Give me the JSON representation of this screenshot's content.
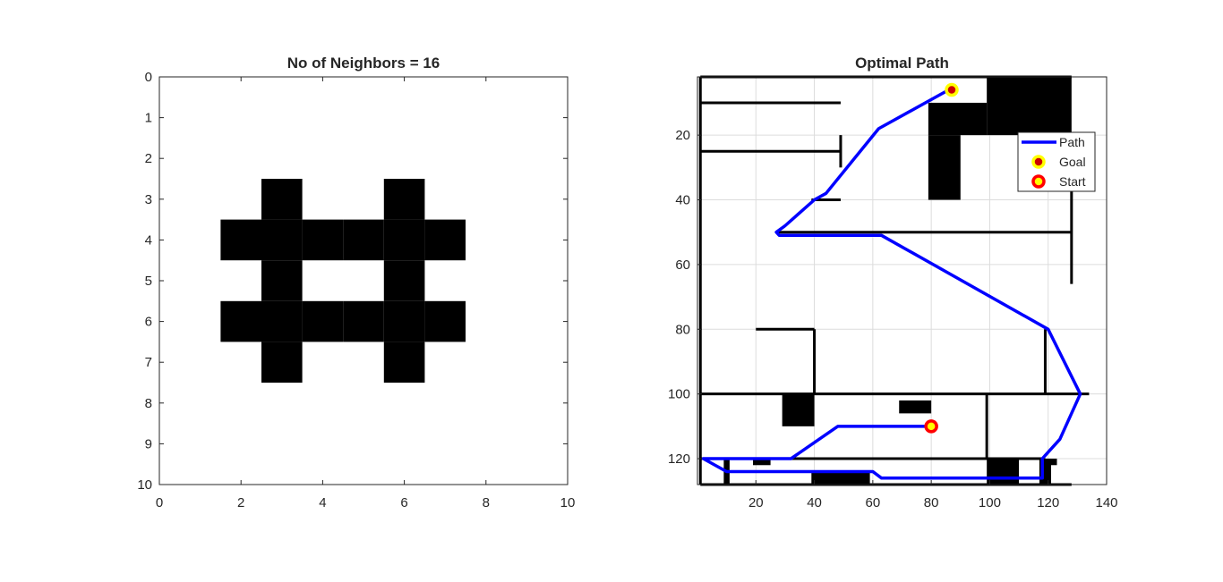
{
  "chart_data": [
    {
      "type": "heatmap",
      "title": "No of Neighbors = 16",
      "xlim": [
        0,
        10
      ],
      "ylim": [
        0,
        10
      ],
      "y_reversed": true,
      "grid": false,
      "xticks": [
        "0",
        "2",
        "4",
        "6",
        "8",
        "10"
      ],
      "yticks": [
        "0",
        "1",
        "2",
        "3",
        "4",
        "5",
        "6",
        "7",
        "8",
        "9",
        "10"
      ],
      "colors": {
        "occupied": "#000000",
        "free": "#ffffff"
      },
      "occupied_cells": [
        [
          3,
          3
        ],
        [
          6,
          3
        ],
        [
          2,
          4
        ],
        [
          3,
          4
        ],
        [
          4,
          4
        ],
        [
          5,
          4
        ],
        [
          6,
          4
        ],
        [
          7,
          4
        ],
        [
          3,
          5
        ],
        [
          6,
          5
        ],
        [
          2,
          6
        ],
        [
          3,
          6
        ],
        [
          4,
          6
        ],
        [
          5,
          6
        ],
        [
          6,
          6
        ],
        [
          7,
          6
        ],
        [
          3,
          7
        ],
        [
          6,
          7
        ]
      ]
    },
    {
      "type": "line",
      "title": "Optimal Path",
      "xlim": [
        0,
        140
      ],
      "ylim": [
        128,
        2
      ],
      "y_reversed": true,
      "grid": true,
      "legend_position": "top-right",
      "xticks": [
        "20",
        "40",
        "60",
        "80",
        "100",
        "120",
        "140"
      ],
      "yticks": [
        "20",
        "40",
        "60",
        "80",
        "100",
        "120"
      ],
      "walls": [
        [
          [
            1,
            2
          ],
          [
            128,
            2
          ]
        ],
        [
          [
            1,
            128
          ],
          [
            128,
            128
          ]
        ],
        [
          [
            1,
            2
          ],
          [
            1,
            128
          ]
        ],
        [
          [
            1,
            10
          ],
          [
            49,
            10
          ]
        ],
        [
          [
            1,
            25
          ],
          [
            49,
            25
          ]
        ],
        [
          [
            49,
            20
          ],
          [
            49,
            30
          ]
        ],
        [
          [
            39,
            40
          ],
          [
            49,
            40
          ]
        ],
        [
          [
            27,
            50
          ],
          [
            128,
            50
          ]
        ],
        [
          [
            128,
            36
          ],
          [
            128,
            66
          ]
        ],
        [
          [
            20,
            80
          ],
          [
            40,
            80
          ]
        ],
        [
          [
            40,
            80
          ],
          [
            40,
            100
          ]
        ],
        [
          [
            119,
            80
          ],
          [
            119,
            100
          ]
        ],
        [
          [
            1,
            100
          ],
          [
            134,
            100
          ]
        ],
        [
          [
            99,
            100
          ],
          [
            99,
            120
          ]
        ],
        [
          [
            1,
            120
          ],
          [
            119,
            120
          ]
        ]
      ],
      "blocks": [
        [
          99,
          2,
          128,
          20
        ],
        [
          79,
          10,
          99,
          20
        ],
        [
          79,
          20,
          90,
          40
        ],
        [
          29,
          100,
          40,
          110
        ],
        [
          69,
          102,
          80,
          106
        ],
        [
          19,
          120,
          25,
          122
        ],
        [
          9,
          120,
          11,
          128
        ],
        [
          39,
          124,
          59,
          128
        ],
        [
          99,
          120,
          110,
          128
        ],
        [
          117,
          120,
          121,
          128
        ],
        [
          119,
          120,
          123,
          122
        ]
      ],
      "series": [
        {
          "name": "Path",
          "color": "#0000ff",
          "points": [
            [
              80,
              110
            ],
            [
              48,
              110
            ],
            [
              32,
              120
            ],
            [
              2,
              120
            ],
            [
              10,
              124
            ],
            [
              60,
              124
            ],
            [
              63,
              126
            ],
            [
              115,
              126
            ],
            [
              118,
              126
            ],
            [
              118,
              120
            ],
            [
              124,
              114
            ],
            [
              131,
              100
            ],
            [
              120,
              80
            ],
            [
              63,
              51
            ],
            [
              28,
              51
            ],
            [
              27,
              50
            ],
            [
              30,
              48
            ],
            [
              40,
              40
            ],
            [
              44,
              38
            ],
            [
              62,
              18
            ],
            [
              86,
              6
            ]
          ]
        }
      ],
      "markers": [
        {
          "name": "Goal",
          "x": 87,
          "y": 6,
          "fill": "#cc0000",
          "edge": "#ffff00"
        },
        {
          "name": "Start",
          "x": 80,
          "y": 110,
          "fill": "#ffff00",
          "edge": "#ff0000"
        }
      ]
    }
  ]
}
